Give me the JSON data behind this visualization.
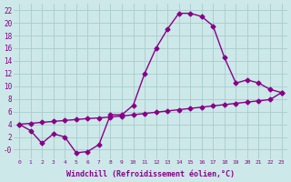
{
  "xlabel": "Windchill (Refroidissement éolien,°C)",
  "x": [
    0,
    1,
    2,
    3,
    4,
    5,
    6,
    7,
    8,
    9,
    10,
    11,
    12,
    13,
    14,
    15,
    16,
    17,
    18,
    19,
    20,
    21,
    22,
    23
  ],
  "line_main": [
    4,
    3,
    1,
    2.5,
    2,
    -0.5,
    -0.3,
    0.8,
    5.5,
    5.5,
    7,
    12,
    16,
    19,
    21.5,
    21.5,
    21,
    19.5,
    14.5,
    10.5,
    11,
    10.5,
    9.5,
    9
  ],
  "line_straight": [
    4.0,
    4.15,
    4.3,
    4.45,
    4.6,
    4.75,
    4.9,
    5.0,
    5.15,
    5.3,
    5.5,
    5.7,
    5.9,
    6.1,
    6.3,
    6.5,
    6.7,
    6.9,
    7.1,
    7.3,
    7.5,
    7.7,
    7.9,
    9.0
  ],
  "ylim": [
    -1.5,
    23
  ],
  "xlim": [
    -0.5,
    23.5
  ],
  "yticks": [
    0,
    2,
    4,
    6,
    8,
    10,
    12,
    14,
    16,
    18,
    20,
    22
  ],
  "ytick_labels": [
    "-0",
    "2",
    "4",
    "6",
    "8",
    "10",
    "12",
    "14",
    "16",
    "18",
    "20",
    "22"
  ],
  "xticks": [
    0,
    1,
    2,
    3,
    4,
    5,
    6,
    7,
    8,
    9,
    10,
    11,
    12,
    13,
    14,
    15,
    16,
    17,
    18,
    19,
    20,
    21,
    22,
    23
  ],
  "line_color": "#880088",
  "bg_color": "#cce8e8",
  "grid_color": "#aacccc",
  "marker_size": 2.5,
  "line_width": 1.0,
  "fig_width": 3.2,
  "fig_height": 2.0,
  "dpi": 100
}
